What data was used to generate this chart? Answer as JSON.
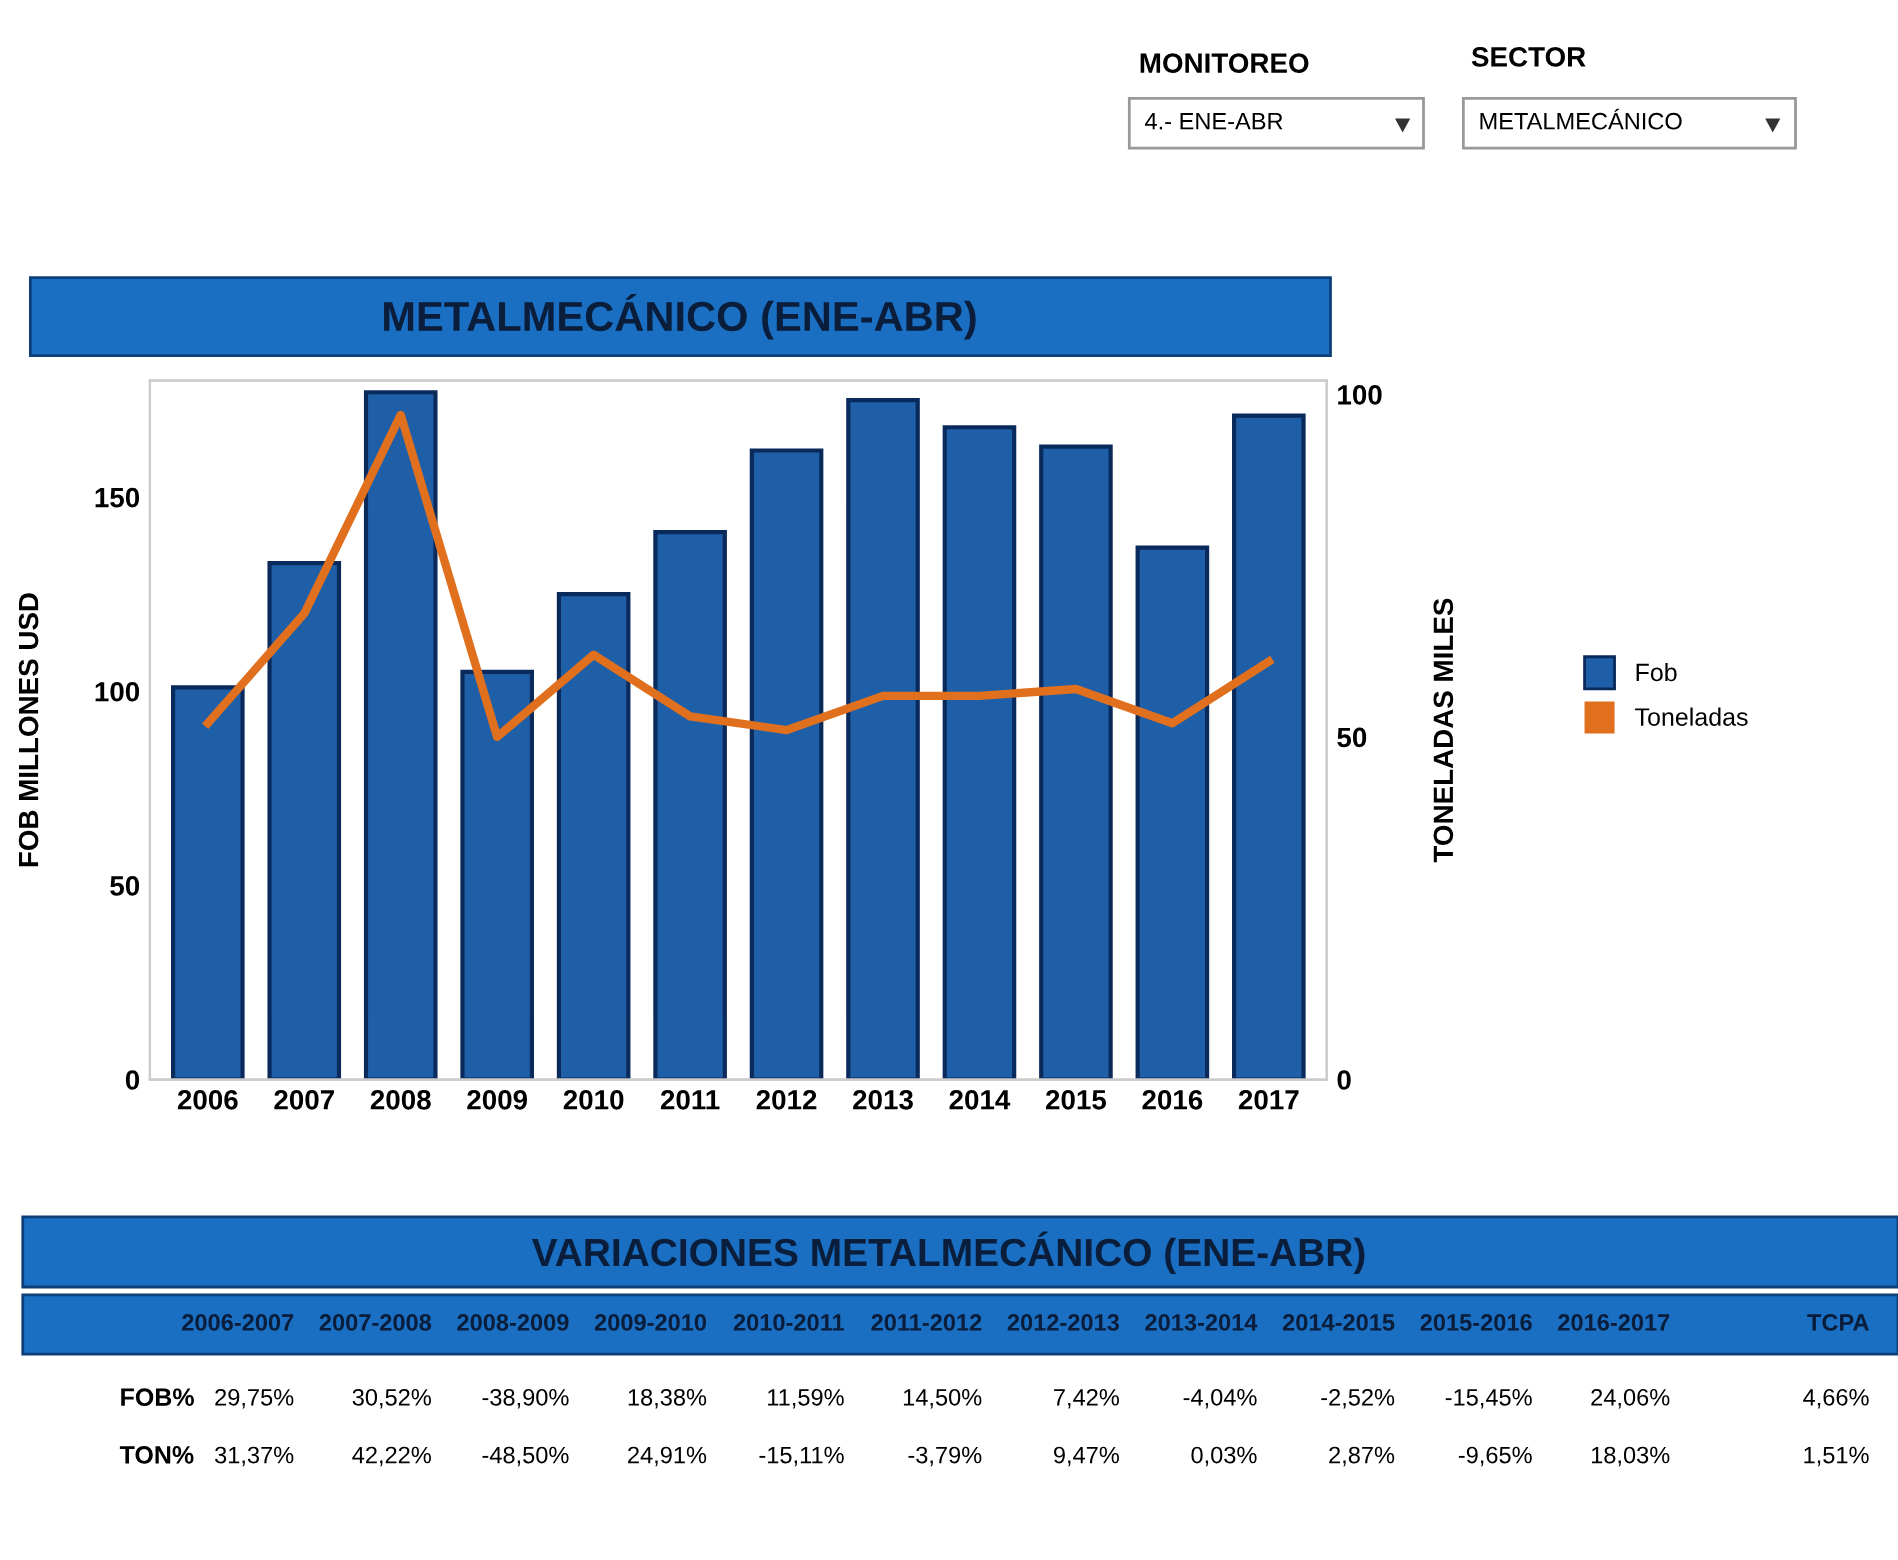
{
  "chart_data": {
    "type": "bar",
    "title": "METALMECÁNICO (ENE-ABR)",
    "categories": [
      "2006",
      "2007",
      "2008",
      "2009",
      "2010",
      "2011",
      "2012",
      "2013",
      "2014",
      "2015",
      "2016",
      "2017"
    ],
    "series": [
      {
        "name": "Fob",
        "color": "#1f5fa8",
        "values": [
          101,
          133,
          177,
          105,
          125,
          141,
          162,
          175,
          168,
          163,
          137,
          171
        ]
      },
      {
        "name": "Toneladas",
        "type": "line",
        "axis": "y2",
        "color": "#e0701e",
        "values": [
          52,
          68,
          97,
          50,
          62,
          53,
          51,
          56,
          56,
          57,
          52,
          61
        ]
      }
    ],
    "ylabel": "FOB MILLONES USD",
    "y2label": "TONELADAS MILES",
    "ylim": [
      0,
      180
    ],
    "yticks": [
      0,
      50,
      100,
      150
    ],
    "y2lim": [
      0,
      102
    ],
    "y2ticks": [
      0,
      50,
      100
    ],
    "legend": "right",
    "grid": false,
    "marker": "none",
    "line_style": "solid",
    "annotations": [
      "MONITOREO",
      "4.- ENE-ABR",
      "SECTOR",
      "METALMECÁNICO",
      "VARIACIONES METALMECÁNICO (ENE-ABR)",
      "2006-2007",
      "2007-2008",
      "2008-2009",
      "2009-2010",
      "2010-2011",
      "2011-2012",
      "2012-2013",
      "2013-2014",
      "2014-2015",
      "2015-2016",
      "2016-2017",
      "TCPA",
      "FOB%",
      "29,75%",
      "30,52%",
      "-38,90%",
      "18,38%",
      "11,59%",
      "14,50%",
      "7,42%",
      "-4,04%",
      "-2,52%",
      "-15,45%",
      "24,06%",
      "4,66%",
      "TON%",
      "31,37%",
      "42,22%",
      "-48,50%",
      "24,91%",
      "-15,11%",
      "-3,79%",
      "9,47%",
      "0,03%",
      "2,87%",
      "-9,65%",
      "18,03%",
      "1,51%"
    ]
  }
}
